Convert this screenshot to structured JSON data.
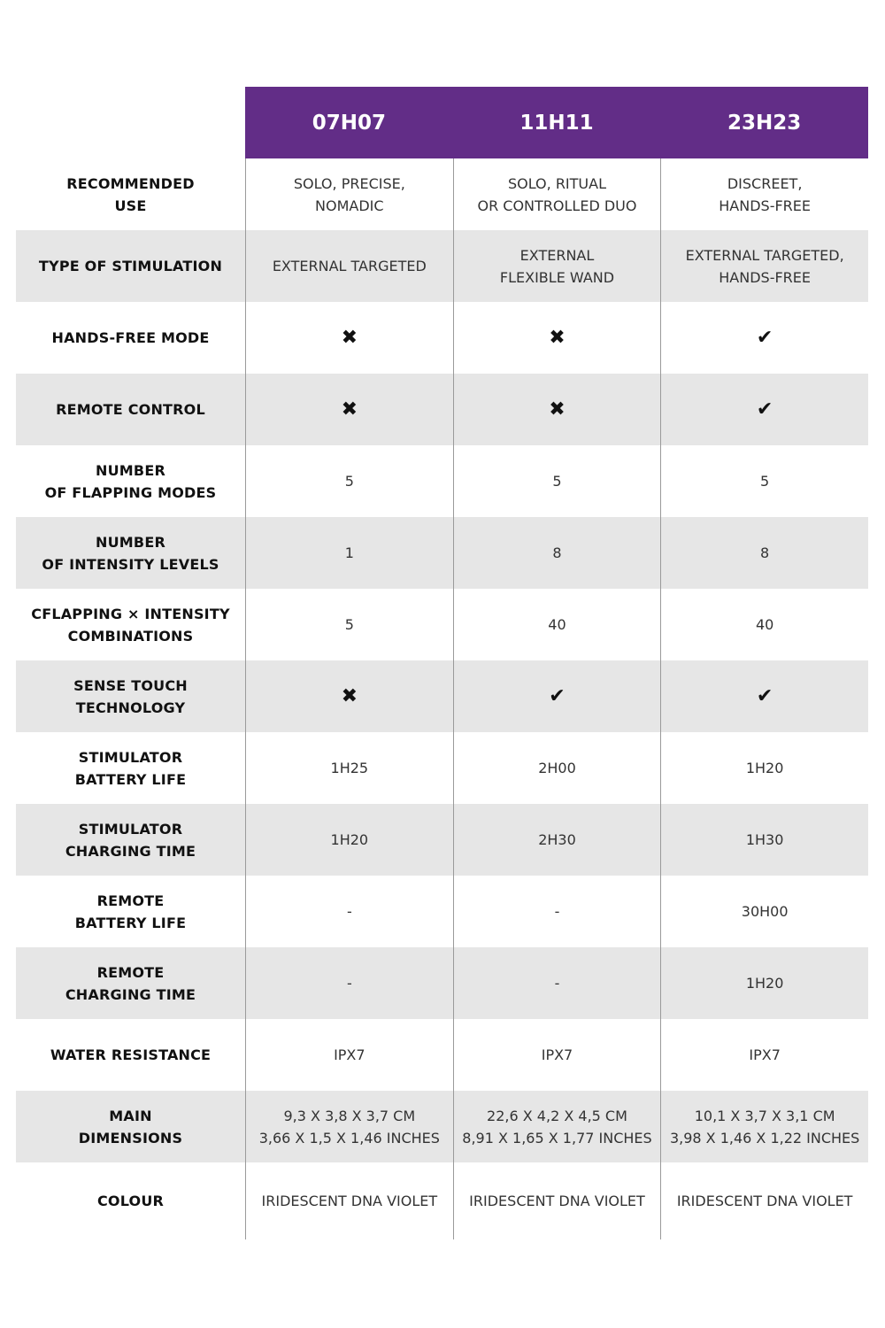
{
  "colors": {
    "header_bg": "#622d87",
    "stripe_bg": "#e6e6e6"
  },
  "products": [
    "07H07",
    "11H11",
    "23H23"
  ],
  "rows": [
    {
      "label": "RECOMMENDED\nUSE",
      "values": [
        "SOLO, PRECISE,\nNOMADIC",
        "SOLO, RITUAL\nOR CONTROLLED DUO",
        "DISCREET,\nHANDS-FREE"
      ]
    },
    {
      "label": "TYPE OF STIMULATION",
      "values": [
        "EXTERNAL TARGETED",
        "EXTERNAL\nFLEXIBLE WAND",
        "EXTERNAL TARGETED,\nHANDS-FREE"
      ]
    },
    {
      "label": "HANDS-FREE MODE",
      "values": [
        "✖",
        "✖",
        "✔"
      ]
    },
    {
      "label": "REMOTE CONTROL",
      "values": [
        "✖",
        "✖",
        "✔"
      ]
    },
    {
      "label": "NUMBER\nOF FLAPPING MODES",
      "values": [
        "5",
        "5",
        "5"
      ]
    },
    {
      "label": "NUMBER\nOF INTENSITY LEVELS",
      "values": [
        "1",
        "8",
        "8"
      ]
    },
    {
      "label": "CFLAPPING × INTENSITY\nCOMBINATIONS",
      "values": [
        "5",
        "40",
        "40"
      ]
    },
    {
      "label": "SENSE TOUCH\nTECHNOLOGY",
      "values": [
        "✖",
        "✔",
        "✔"
      ]
    },
    {
      "label": "STIMULATOR\nBATTERY LIFE",
      "values": [
        "1H25",
        "2H00",
        "1H20"
      ]
    },
    {
      "label": "STIMULATOR\nCHARGING TIME",
      "values": [
        "1H20",
        "2H30",
        "1H30"
      ]
    },
    {
      "label": "REMOTE\nBATTERY LIFE",
      "values": [
        "-",
        "-",
        "30H00"
      ]
    },
    {
      "label": "REMOTE\nCHARGING TIME",
      "values": [
        "-",
        "-",
        "1H20"
      ]
    },
    {
      "label": "WATER RESISTANCE",
      "values": [
        "IPX7",
        "IPX7",
        "IPX7"
      ]
    },
    {
      "label": "MAIN\nDIMENSIONS",
      "values": [
        "9,3 X 3,8 X 3,7 CM\n3,66 X 1,5 X 1,46 INCHES",
        "22,6 X 4,2 X 4,5 CM\n8,91 X 1,65 X 1,77 INCHES",
        "10,1 X 3,7 X 3,1 CM\n3,98 X 1,46 X 1,22 INCHES"
      ]
    },
    {
      "label": "COLOUR",
      "values": [
        "IRIDESCENT DNA VIOLET",
        "IRIDESCENT DNA VIOLET",
        "IRIDESCENT DNA VIOLET"
      ]
    }
  ]
}
